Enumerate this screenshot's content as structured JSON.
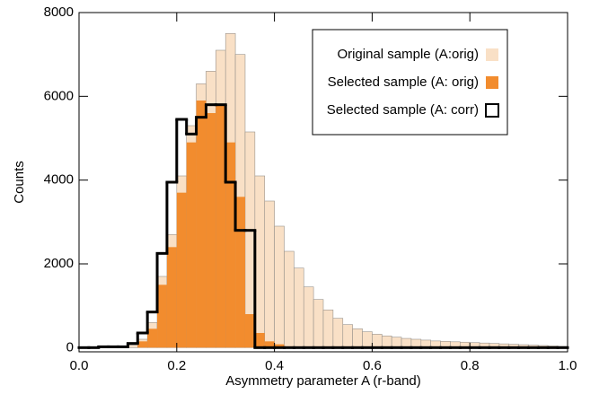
{
  "chart_data": {
    "type": "histogram",
    "xlabel": "Asymmetry parameter A (r-band)",
    "ylabel": "Counts",
    "bins": [
      0,
      0.02,
      0.04,
      0.06,
      0.08,
      0.1,
      0.12,
      0.14,
      0.16,
      0.18,
      0.2,
      0.22,
      0.24,
      0.26,
      0.28,
      0.3,
      0.32,
      0.34,
      0.36,
      0.38,
      0.4,
      0.42,
      0.44,
      0.46,
      0.48,
      0.5,
      0.52,
      0.54,
      0.56,
      0.58,
      0.6,
      0.62,
      0.64,
      0.66,
      0.68,
      0.7,
      0.72,
      0.74,
      0.76,
      0.78,
      0.8,
      0.82,
      0.84,
      0.86,
      0.88,
      0.9,
      0.92,
      0.94,
      0.96,
      0.98,
      1
    ],
    "series": [
      {
        "name": "Original sample (A:orig)",
        "color": "#f9e0c6",
        "histtype": "bar",
        "values": [
          0,
          0,
          10,
          10,
          20,
          60,
          200,
          600,
          1700,
          2700,
          4100,
          5300,
          6300,
          6600,
          7100,
          7500,
          7000,
          5150,
          4100,
          3500,
          2900,
          2300,
          1900,
          1450,
          1150,
          900,
          700,
          550,
          450,
          380,
          320,
          280,
          250,
          220,
          200,
          180,
          160,
          150,
          140,
          130,
          120,
          110,
          100,
          90,
          80,
          70,
          60,
          50,
          40,
          30
        ]
      },
      {
        "name": "Selected sample (A: orig)",
        "color": "#f28c2e",
        "histtype": "bar",
        "values": [
          0,
          0,
          0,
          0,
          0,
          0,
          150,
          450,
          1500,
          2400,
          3700,
          4900,
          5900,
          5600,
          5800,
          4900,
          3600,
          800,
          350,
          150,
          80,
          30,
          0,
          0,
          0,
          0,
          0,
          0,
          0,
          0,
          0,
          0,
          0,
          0,
          0,
          0,
          0,
          0,
          0,
          0,
          0,
          0,
          0,
          0,
          0,
          0,
          0,
          0,
          0,
          0
        ]
      },
      {
        "name": "Selected sample (A: corr)",
        "color": "#000000",
        "histtype": "step",
        "values": [
          0,
          0,
          20,
          20,
          20,
          100,
          350,
          850,
          2250,
          3950,
          5450,
          5100,
          5500,
          5800,
          5800,
          3950,
          2800,
          2800,
          0,
          0,
          0,
          0,
          0,
          0,
          0,
          0,
          0,
          0,
          0,
          0,
          0,
          0,
          0,
          0,
          0,
          0,
          0,
          0,
          0,
          0,
          0,
          0,
          0,
          0,
          0,
          0,
          0,
          0,
          0,
          0
        ]
      }
    ],
    "xlim": [
      0,
      1
    ],
    "xticks": [
      {
        "value": 0,
        "label": "0.0"
      },
      0.2,
      0.4,
      0.6,
      0.8,
      {
        "value": 1,
        "label": "1.0"
      }
    ],
    "ylim": [
      -100,
      8000
    ],
    "yticks": [
      0,
      2000,
      4000,
      6000,
      8000
    ],
    "legend": "upper right"
  }
}
